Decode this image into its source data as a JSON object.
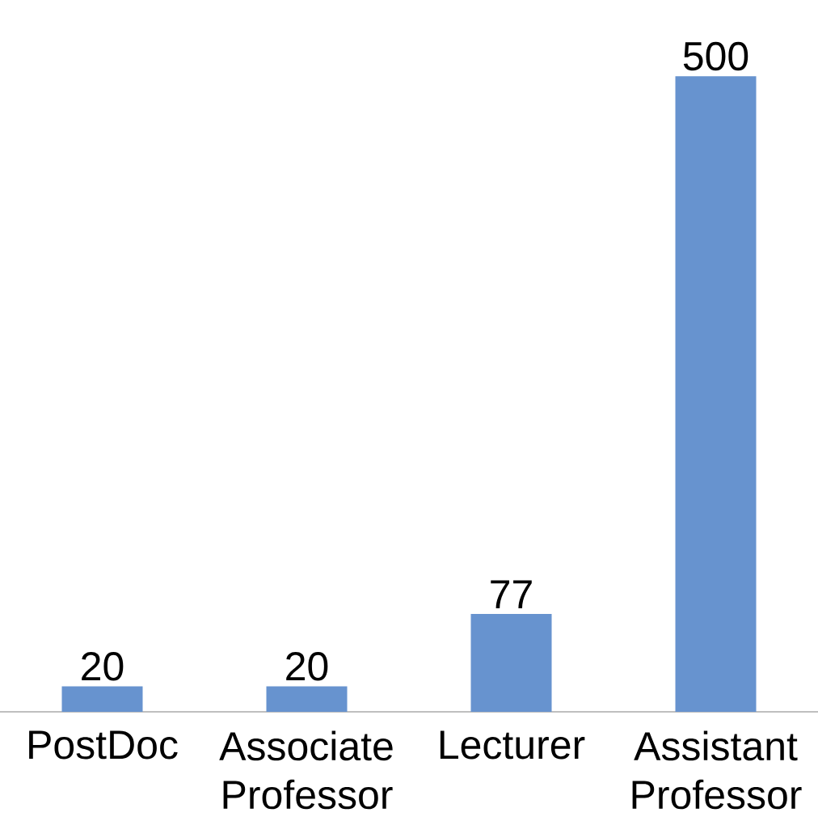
{
  "chart_data": {
    "type": "bar",
    "categories": [
      "PostDoc",
      "Associate Professor",
      "Lecturer",
      "Assistant Professor"
    ],
    "values": [
      20,
      20,
      77,
      500
    ],
    "color": "#6793cf",
    "data_labels": true
  }
}
